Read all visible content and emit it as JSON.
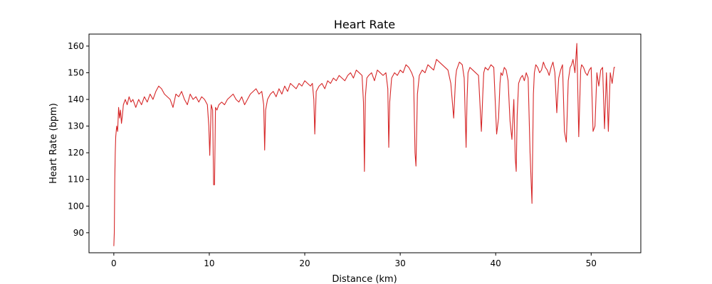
{
  "chart_data": {
    "type": "line",
    "title": "Heart Rate",
    "xlabel": "Distance (km)",
    "ylabel": "Heart Rate (bpm)",
    "xlim": [
      -2.6,
      55.2
    ],
    "ylim": [
      82.5,
      164.5
    ],
    "xticks": [
      0,
      10,
      20,
      30,
      40,
      50
    ],
    "yticks": [
      90,
      100,
      110,
      120,
      130,
      140,
      150,
      160
    ],
    "grid": false,
    "legend": "none",
    "line_color": "#d62728",
    "series": [
      {
        "x": [
          0,
          0.05,
          0.1,
          0.15,
          0.2,
          0.3,
          0.4,
          0.5,
          0.6,
          0.7,
          0.8,
          0.9,
          1.0,
          1.2,
          1.4,
          1.6,
          1.8,
          2.0,
          2.3,
          2.6,
          2.9,
          3.2,
          3.5,
          3.8,
          4.1,
          4.4,
          4.7,
          5.0,
          5.3,
          5.6,
          5.9,
          6.2,
          6.5,
          6.8,
          7.1,
          7.4,
          7.7,
          8.0,
          8.3,
          8.6,
          8.9,
          9.2,
          9.5,
          9.8,
          9.95,
          10.05,
          10.2,
          10.35,
          10.45,
          10.55,
          10.65,
          10.8,
          11.0,
          11.3,
          11.6,
          11.9,
          12.2,
          12.5,
          12.8,
          13.1,
          13.4,
          13.7,
          14.0,
          14.3,
          14.6,
          14.9,
          15.2,
          15.5,
          15.7,
          15.8,
          15.9,
          16.1,
          16.4,
          16.7,
          17.0,
          17.3,
          17.6,
          17.9,
          18.2,
          18.5,
          18.8,
          19.1,
          19.4,
          19.7,
          20.0,
          20.3,
          20.6,
          20.8,
          20.95,
          21.05,
          21.2,
          21.5,
          21.8,
          22.1,
          22.4,
          22.7,
          23.0,
          23.3,
          23.6,
          23.9,
          24.2,
          24.5,
          24.8,
          25.1,
          25.4,
          25.7,
          26.0,
          26.15,
          26.25,
          26.35,
          26.5,
          26.7,
          27.0,
          27.3,
          27.6,
          27.9,
          28.2,
          28.5,
          28.7,
          28.8,
          28.9,
          29.1,
          29.4,
          29.7,
          30.0,
          30.3,
          30.6,
          30.9,
          31.2,
          31.4,
          31.55,
          31.65,
          31.8,
          32.0,
          32.3,
          32.6,
          32.9,
          33.2,
          33.5,
          33.8,
          34.1,
          34.4,
          34.7,
          35.0,
          35.3,
          35.6,
          35.8,
          35.9,
          36.0,
          36.2,
          36.5,
          36.7,
          36.9,
          37.0,
          37.1,
          37.3,
          37.6,
          37.9,
          38.2,
          38.5,
          38.65,
          38.75,
          38.9,
          39.2,
          39.5,
          39.8,
          40.1,
          40.3,
          40.45,
          40.55,
          40.7,
          40.9,
          41.1,
          41.3,
          41.5,
          41.7,
          41.9,
          42.05,
          42.15,
          42.25,
          42.4,
          42.6,
          42.8,
          43.0,
          43.2,
          43.4,
          43.6,
          43.8,
          43.95,
          44.05,
          44.2,
          44.4,
          44.6,
          44.8,
          45.0,
          45.2,
          45.4,
          45.6,
          45.8,
          46.0,
          46.2,
          46.4,
          46.6,
          46.8,
          47.0,
          47.2,
          47.4,
          47.6,
          47.8,
          47.95,
          48.1,
          48.3,
          48.5,
          48.7,
          48.9,
          49.0,
          49.2,
          49.4,
          49.6,
          49.8,
          50.0,
          50.2,
          50.4,
          50.6,
          50.8,
          51.0,
          51.2,
          51.4,
          51.6,
          51.8,
          52.0,
          52.2,
          52.4,
          52.5
        ],
        "y": [
          85,
          90,
          110,
          120,
          126,
          130,
          128,
          137,
          133,
          136,
          131,
          134,
          138,
          140,
          138,
          141,
          139,
          140,
          137,
          140,
          138,
          141,
          139,
          142,
          140,
          143,
          145,
          144,
          142,
          141,
          140,
          137,
          142,
          141,
          143,
          140,
          138,
          142,
          140,
          141,
          139,
          141,
          140,
          138,
          130,
          119,
          138,
          136,
          108,
          108,
          137,
          136,
          138,
          139,
          138,
          140,
          141,
          142,
          140,
          139,
          141,
          138,
          140,
          142,
          143,
          144,
          142,
          143,
          138,
          121,
          136,
          140,
          142,
          143,
          141,
          144,
          142,
          145,
          143,
          146,
          145,
          144,
          146,
          145,
          147,
          146,
          145,
          146,
          140,
          127,
          143,
          145,
          146,
          144,
          147,
          146,
          148,
          147,
          149,
          148,
          147,
          149,
          150,
          148,
          151,
          150,
          149,
          139,
          113,
          141,
          148,
          149,
          150,
          147,
          151,
          150,
          149,
          150,
          144,
          122,
          139,
          148,
          150,
          149,
          151,
          150,
          153,
          152,
          150,
          148,
          120,
          115,
          142,
          149,
          151,
          150,
          153,
          152,
          151,
          155,
          154,
          153,
          152,
          151,
          146,
          133,
          148,
          151,
          152,
          154,
          153,
          148,
          122,
          140,
          150,
          152,
          151,
          150,
          149,
          128,
          142,
          150,
          152,
          151,
          153,
          152,
          127,
          133,
          146,
          150,
          149,
          152,
          151,
          147,
          132,
          125,
          140,
          118,
          113,
          134,
          146,
          148,
          149,
          147,
          150,
          148,
          120,
          101,
          142,
          150,
          153,
          152,
          150,
          151,
          154,
          152,
          151,
          149,
          152,
          154,
          150,
          135,
          148,
          151,
          153,
          128,
          124,
          147,
          152,
          153,
          155,
          150,
          161,
          126,
          151,
          153,
          152,
          150,
          149,
          151,
          152,
          128,
          130,
          150,
          145,
          151,
          152,
          129,
          150,
          128,
          150,
          146,
          152,
          152
        ]
      }
    ]
  }
}
